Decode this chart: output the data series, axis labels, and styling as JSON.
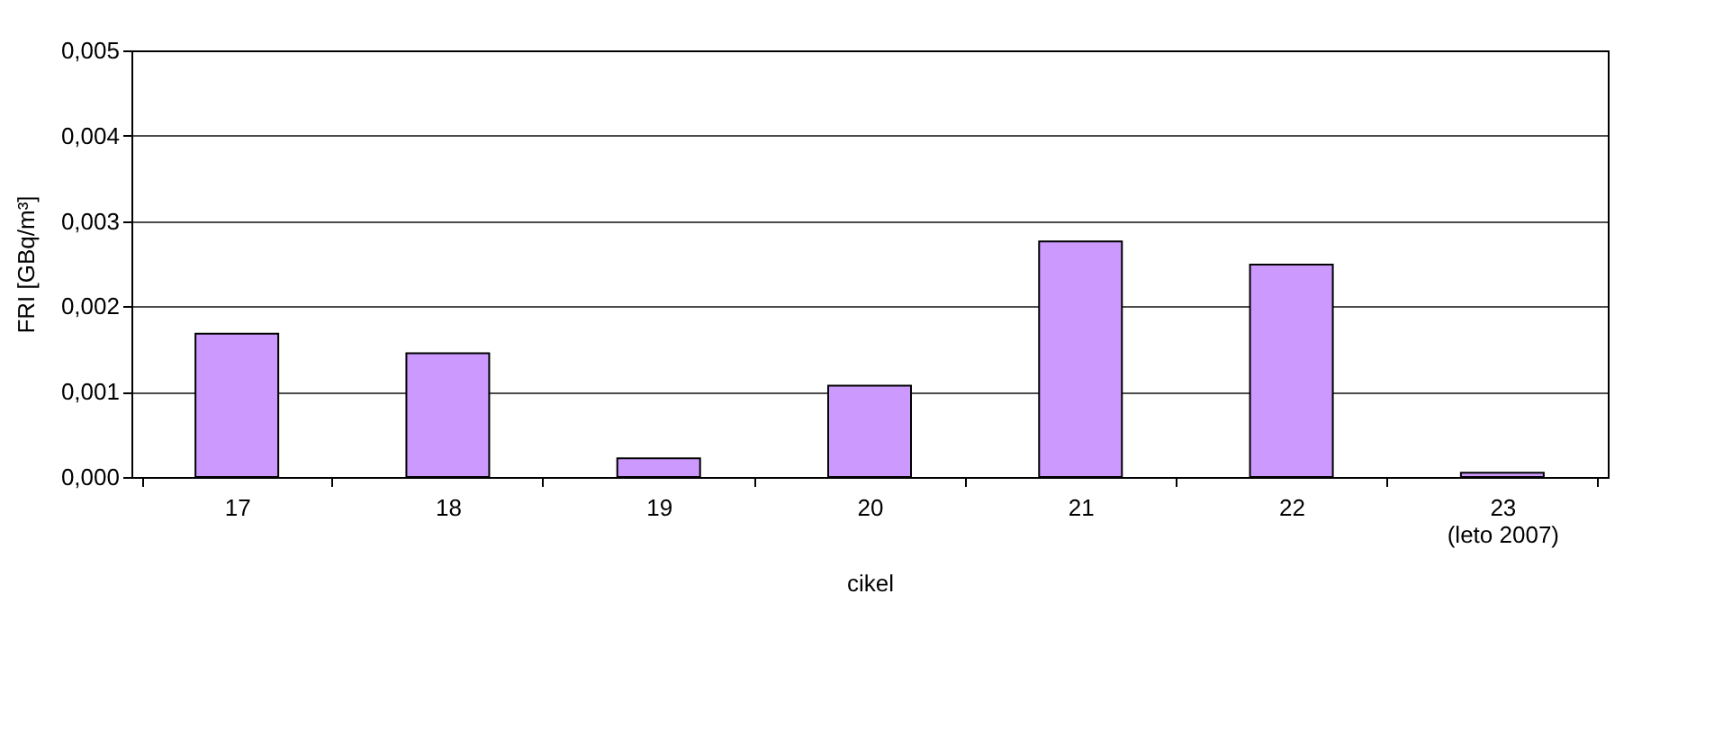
{
  "chart_data": {
    "type": "bar",
    "categories": [
      "17",
      "18",
      "19",
      "20",
      "21",
      "22",
      "23\n(leto 2007)"
    ],
    "values": [
      0.00168,
      0.00145,
      0.00022,
      0.00107,
      0.00276,
      0.00249,
      5e-05
    ],
    "color": "#cc99ff",
    "xlabel": "cikel",
    "ylabel": "FRI [GBq/m³]",
    "ylim": [
      0,
      0.005
    ],
    "yticks": [
      {
        "value": 0,
        "label": "0,000"
      },
      {
        "value": 0.001,
        "label": "0,001"
      },
      {
        "value": 0.002,
        "label": "0,002"
      },
      {
        "value": 0.003,
        "label": "0,003"
      },
      {
        "value": 0.004,
        "label": "0,004"
      },
      {
        "value": 0.005,
        "label": "0,005"
      }
    ],
    "grid": "y"
  }
}
